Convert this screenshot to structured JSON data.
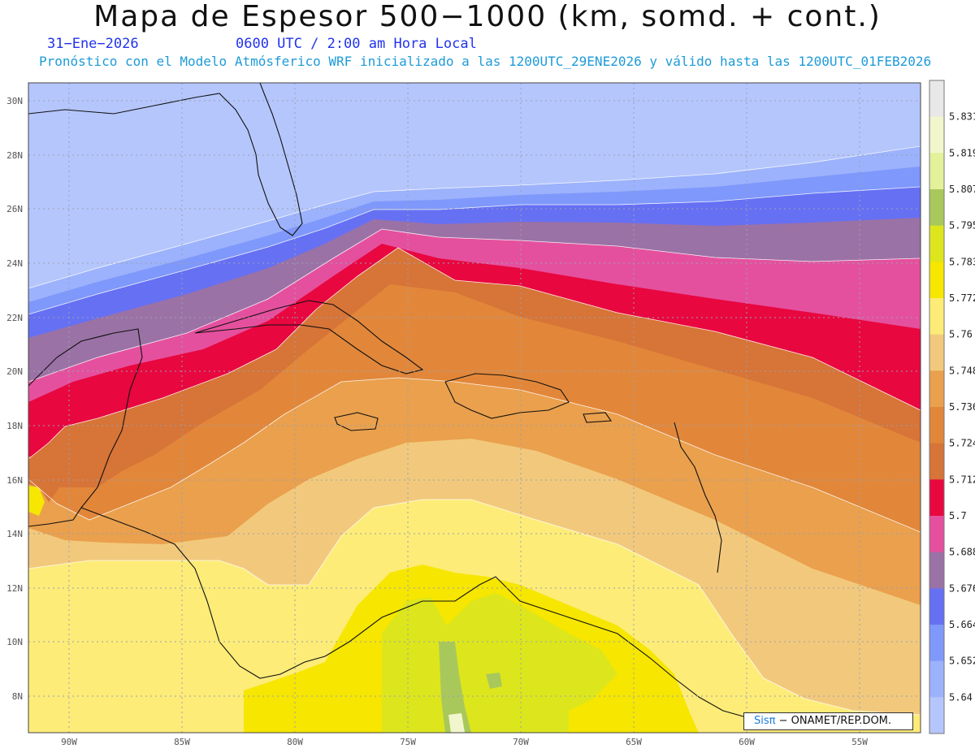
{
  "title": "Mapa de Espesor 500−1000 (km, somd. + cont.)",
  "date": "31−Ene−2026",
  "valid_time": "0600 UTC / 2:00 am Hora Local",
  "subtitle": "Pronóstico con el Modelo Atmósferico WRF inicializado a las 1200UTC_29ENE2026 y válido hasta las  1200UTC_01FEB2026",
  "lat_labels": [
    "30N",
    "28N",
    "26N",
    "24N",
    "22N",
    "20N",
    "18N",
    "16N",
    "14N",
    "12N",
    "10N",
    "8N"
  ],
  "lon_labels": [
    "90W",
    "85W",
    "80W",
    "75W",
    "70W",
    "65W",
    "60W",
    "55W"
  ],
  "colorbar": {
    "levels": [
      "5.831",
      "5.819",
      "5.807",
      "5.795",
      "5.783",
      "5.772",
      "5.76",
      "5.748",
      "5.736",
      "5.724",
      "5.712",
      "5.7",
      "5.688",
      "5.676",
      "5.664",
      "5.652",
      "5.64"
    ],
    "colors": [
      "#e8e8e8",
      "#f2f6cc",
      "#e2f19a",
      "#a9c85c",
      "#dde61c",
      "#f6e600",
      "#fdec78",
      "#f2c97c",
      "#eaa04d",
      "#e2873a",
      "#d77437",
      "#e8073f",
      "#e5509e",
      "#9b72a6",
      "#6670f3",
      "#7f98fb",
      "#9cb2fc",
      "#b5c6fd"
    ]
  },
  "credit": {
    "brand": "Sisπ",
    "text": "− ONAMET/REP.DOM."
  }
}
